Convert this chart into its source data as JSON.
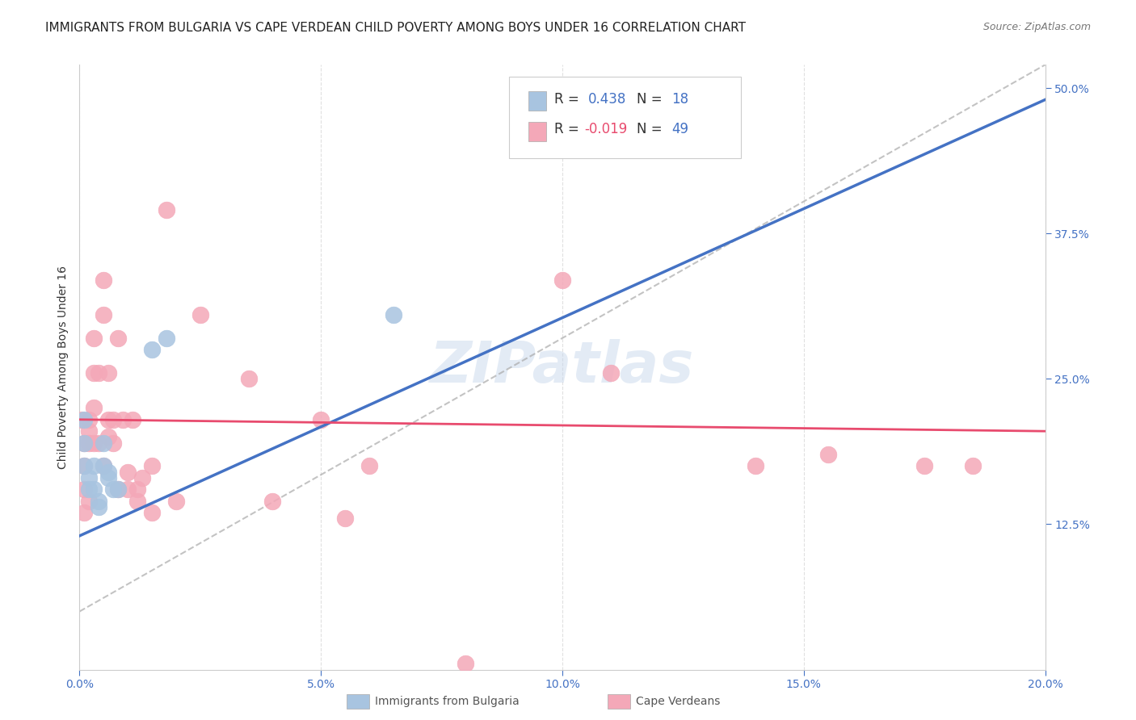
{
  "title": "IMMIGRANTS FROM BULGARIA VS CAPE VERDEAN CHILD POVERTY AMONG BOYS UNDER 16 CORRELATION CHART",
  "source": "Source: ZipAtlas.com",
  "ylabel": "Child Poverty Among Boys Under 16",
  "xlabel_ticks": [
    "0.0%",
    "5.0%",
    "10.0%",
    "15.0%",
    "20.0%"
  ],
  "xlabel_vals": [
    0.0,
    0.05,
    0.1,
    0.15,
    0.2
  ],
  "ylabel_ticks": [
    "12.5%",
    "25.0%",
    "37.5%",
    "50.0%"
  ],
  "ylabel_vals": [
    0.125,
    0.25,
    0.375,
    0.5
  ],
  "xlim": [
    0.0,
    0.2
  ],
  "ylim": [
    0.0,
    0.52
  ],
  "bulgaria_color": "#a8c4e0",
  "cape_color": "#f4a8b8",
  "bulgaria_line_color": "#4472c4",
  "cape_line_color": "#e84b6e",
  "watermark": "ZIPatlas",
  "legend_label_bulgaria": "Immigrants from Bulgaria",
  "legend_label_cape": "Cape Verdeans",
  "bulgaria_x": [
    0.001,
    0.001,
    0.001,
    0.002,
    0.002,
    0.003,
    0.003,
    0.004,
    0.004,
    0.005,
    0.005,
    0.006,
    0.006,
    0.007,
    0.008,
    0.015,
    0.018,
    0.065
  ],
  "bulgaria_y": [
    0.215,
    0.195,
    0.175,
    0.165,
    0.155,
    0.175,
    0.155,
    0.145,
    0.14,
    0.195,
    0.175,
    0.17,
    0.165,
    0.155,
    0.155,
    0.275,
    0.285,
    0.305
  ],
  "cape_x": [
    0.0005,
    0.001,
    0.001,
    0.001,
    0.001,
    0.002,
    0.002,
    0.002,
    0.002,
    0.003,
    0.003,
    0.003,
    0.003,
    0.004,
    0.004,
    0.005,
    0.005,
    0.005,
    0.006,
    0.006,
    0.006,
    0.007,
    0.007,
    0.008,
    0.008,
    0.009,
    0.01,
    0.01,
    0.011,
    0.012,
    0.012,
    0.013,
    0.015,
    0.015,
    0.018,
    0.02,
    0.025,
    0.035,
    0.04,
    0.05,
    0.055,
    0.06,
    0.08,
    0.1,
    0.11,
    0.14,
    0.155,
    0.175,
    0.185
  ],
  "cape_y": [
    0.215,
    0.195,
    0.175,
    0.155,
    0.135,
    0.215,
    0.205,
    0.195,
    0.145,
    0.285,
    0.255,
    0.225,
    0.195,
    0.255,
    0.195,
    0.335,
    0.305,
    0.175,
    0.255,
    0.215,
    0.2,
    0.215,
    0.195,
    0.285,
    0.155,
    0.215,
    0.17,
    0.155,
    0.215,
    0.155,
    0.145,
    0.165,
    0.175,
    0.135,
    0.395,
    0.145,
    0.305,
    0.25,
    0.145,
    0.215,
    0.13,
    0.175,
    0.005,
    0.335,
    0.255,
    0.175,
    0.185,
    0.175,
    0.175
  ],
  "background_color": "#ffffff",
  "grid_color": "#dddddd",
  "title_fontsize": 11,
  "axis_label_fontsize": 10,
  "tick_fontsize": 10,
  "legend_fontsize": 12,
  "bul_line_x": [
    0.0,
    0.2
  ],
  "bul_line_y": [
    0.115,
    0.49
  ],
  "cape_line_x": [
    0.0,
    0.2
  ],
  "cape_line_y": [
    0.215,
    0.205
  ],
  "dash_line_x": [
    0.0,
    0.2
  ],
  "dash_line_y": [
    0.05,
    0.52
  ]
}
